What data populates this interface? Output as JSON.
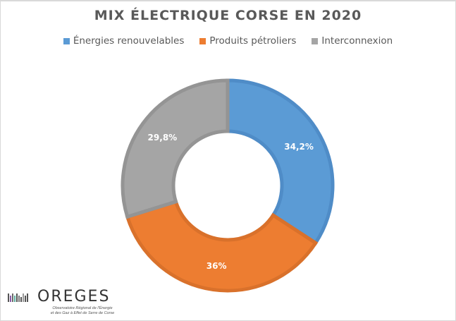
{
  "chart_data": {
    "type": "pie",
    "subtype": "donut",
    "title": "MIX ÉLECTRIQUE CORSE EN 2020",
    "categories": [
      "Énergies renouvelables",
      "Produits pétroliers",
      "Interconnexion"
    ],
    "values": [
      34.2,
      36,
      29.8
    ],
    "labels": [
      "34,2%",
      "36%",
      "29,8%"
    ],
    "colors": [
      "#5B9BD5",
      "#ED7D31",
      "#A5A5A5"
    ],
    "stroke_colors": [
      "#4F8CC7",
      "#D9712B",
      "#949494"
    ],
    "legend_position": "top",
    "start_angle_deg": 0,
    "direction": "clockwise",
    "units": "%"
  },
  "legend": {
    "items": [
      {
        "label": "Énergies renouvelables",
        "color": "#5B9BD5"
      },
      {
        "label": "Produits pétroliers",
        "color": "#ED7D31"
      },
      {
        "label": "Interconnexion",
        "color": "#A5A5A5"
      }
    ]
  },
  "logo": {
    "name": "OREGES",
    "subtitle_line1": "Observatoire Régional de l'Énergie",
    "subtitle_line2": "et des Gaz à Effet de Serre de Corse",
    "bar_colors": [
      "#555555",
      "#8a5aa8",
      "#6a6a6a",
      "#5bb0a0",
      "#555555",
      "#777777",
      "#555555",
      "#999999",
      "#555555",
      "#555555"
    ]
  }
}
